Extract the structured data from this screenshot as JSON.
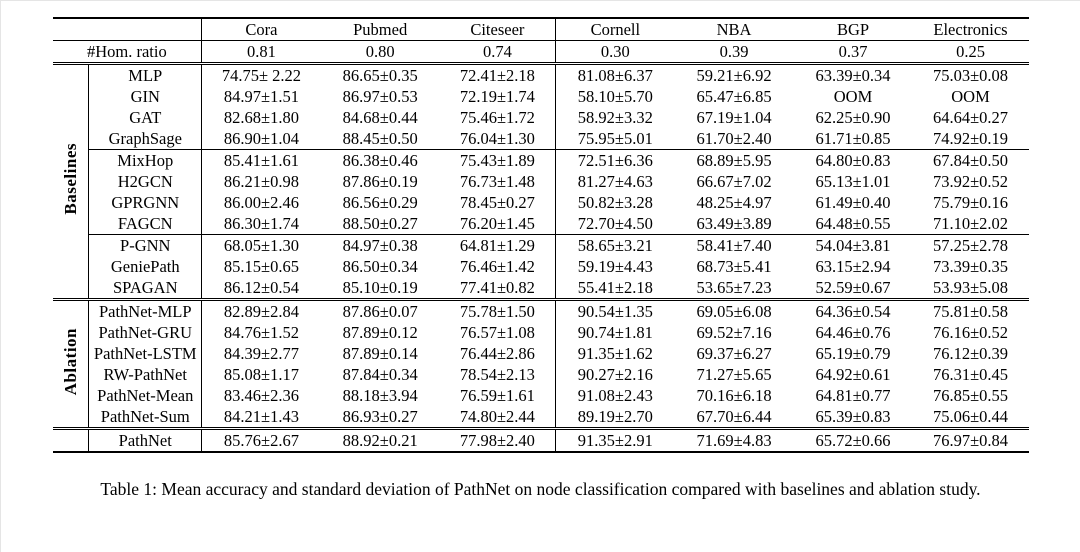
{
  "caption": "Table 1: Mean accuracy and standard deviation of PathNet on node classification compared with baselines and ablation study.",
  "table": {
    "columns": [
      "Cora",
      "Pubmed",
      "Citeseer",
      "Cornell",
      "NBA",
      "BGP",
      "Electronics"
    ],
    "hom_label": "#Hom. ratio",
    "hom_values": [
      "0.81",
      "0.80",
      "0.74",
      "0.30",
      "0.39",
      "0.37",
      "0.25"
    ],
    "sections": [
      {
        "label": "Baselines",
        "groups": [
          [
            {
              "name": "MLP",
              "values": [
                "74.75± 2.22",
                "86.65±0.35",
                "72.41±2.18",
                "81.08±6.37",
                "59.21±6.92",
                "63.39±0.34",
                "75.03±0.08"
              ],
              "bold": []
            },
            {
              "name": "GIN",
              "values": [
                "84.97±1.51",
                "86.97±0.53",
                "72.19±1.74",
                "58.10±5.70",
                "65.47±6.85",
                "OOM",
                "OOM"
              ],
              "bold": []
            },
            {
              "name": "GAT",
              "values": [
                "82.68±1.80",
                "84.68±0.44",
                "75.46±1.72",
                "58.92±3.32",
                "67.19±1.04",
                "62.25±0.90",
                "64.64±0.27"
              ],
              "bold": []
            },
            {
              "name": "GraphSage",
              "values": [
                "86.90±1.04",
                "88.45±0.50",
                "76.04±1.30",
                "75.95±5.01",
                "61.70±2.40",
                "61.71±0.85",
                "74.92±0.19"
              ],
              "bold": [
                0
              ]
            }
          ],
          [
            {
              "name": "MixHop",
              "values": [
                "85.41±1.61",
                "86.38±0.46",
                "75.43±1.89",
                "72.51±6.36",
                "68.89±5.95",
                "64.80±0.83",
                "67.84±0.50"
              ],
              "bold": []
            },
            {
              "name": "H2GCN",
              "values": [
                "86.21±0.98",
                "87.86±0.19",
                "76.73±1.48",
                "81.27±4.63",
                "66.67±7.02",
                "65.13±1.01",
                "73.92±0.52"
              ],
              "bold": []
            },
            {
              "name": "GPRGNN",
              "values": [
                "86.00±2.46",
                "86.56±0.29",
                "78.45±0.27",
                "50.82±3.28",
                "48.25±4.97",
                "61.49±0.40",
                "75.79±0.16"
              ],
              "bold": []
            },
            {
              "name": "FAGCN",
              "values": [
                "86.30±1.74",
                "88.50±0.27",
                "76.20±1.45",
                "72.70±4.50",
                "63.49±3.89",
                "64.48±0.55",
                "71.10±2.02"
              ],
              "bold": []
            }
          ],
          [
            {
              "name": "P-GNN",
              "values": [
                "68.05±1.30",
                "84.97±0.38",
                "64.81±1.29",
                "58.65±3.21",
                "58.41±7.40",
                "54.04±3.81",
                "57.25±2.78"
              ],
              "bold": []
            },
            {
              "name": "GeniePath",
              "values": [
                "85.15±0.65",
                "86.50±0.34",
                "76.46±1.42",
                "59.19±4.43",
                "68.73±5.41",
                "63.15±2.94",
                "73.39±0.35"
              ],
              "bold": []
            },
            {
              "name": "SPAGAN",
              "values": [
                "86.12±0.54",
                "85.10±0.19",
                "77.41±0.82",
                "55.41±2.18",
                "53.65±7.23",
                "52.59±0.67",
                "53.93±5.08"
              ],
              "bold": []
            }
          ]
        ]
      },
      {
        "label": "Ablation",
        "groups": [
          [
            {
              "name": "PathNet-MLP",
              "values": [
                "82.89±2.84",
                "87.86±0.07",
                "75.78±1.50",
                "90.54±1.35",
                "69.05±6.08",
                "64.36±0.54",
                "75.81±0.58"
              ],
              "bold": []
            },
            {
              "name": "PathNet-GRU",
              "values": [
                "84.76±1.52",
                "87.89±0.12",
                "76.57±1.08",
                "90.74±1.81",
                "69.52±7.16",
                "64.46±0.76",
                "76.16±0.52"
              ],
              "bold": []
            },
            {
              "name": "PathNet-LSTM",
              "values": [
                "84.39±2.77",
                "87.89±0.14",
                "76.44±2.86",
                "91.35±1.62",
                "69.37±6.27",
                "65.19±0.79",
                "76.12±0.39"
              ],
              "bold": []
            },
            {
              "name": "RW-PathNet",
              "values": [
                "85.08±1.17",
                "87.84±0.34",
                "78.54±2.13",
                "90.27±2.16",
                "71.27±5.65",
                "64.92±0.61",
                "76.31±0.45"
              ],
              "bold": []
            },
            {
              "name": "PathNet-Mean",
              "values": [
                "83.46±2.36",
                "88.18±3.94",
                "76.59±1.61",
                "91.08±2.43",
                "70.16±6.18",
                "64.81±0.77",
                "76.85±0.55"
              ],
              "bold": []
            },
            {
              "name": "PathNet-Sum",
              "values": [
                "84.21±1.43",
                "86.93±0.27",
                "74.80±2.44",
                "89.19±2.70",
                "67.70±6.44",
                "65.39±0.83",
                "75.06±0.44"
              ],
              "bold": []
            }
          ]
        ]
      }
    ],
    "final": {
      "name": "PathNet",
      "values": [
        "85.76±2.67",
        "88.92±0.21",
        "77.98±2.40",
        "91.35±2.91",
        "71.69±4.83",
        "65.72±0.66",
        "76.97±0.84"
      ],
      "bold": [
        1,
        2,
        3,
        4,
        5,
        6
      ]
    }
  }
}
